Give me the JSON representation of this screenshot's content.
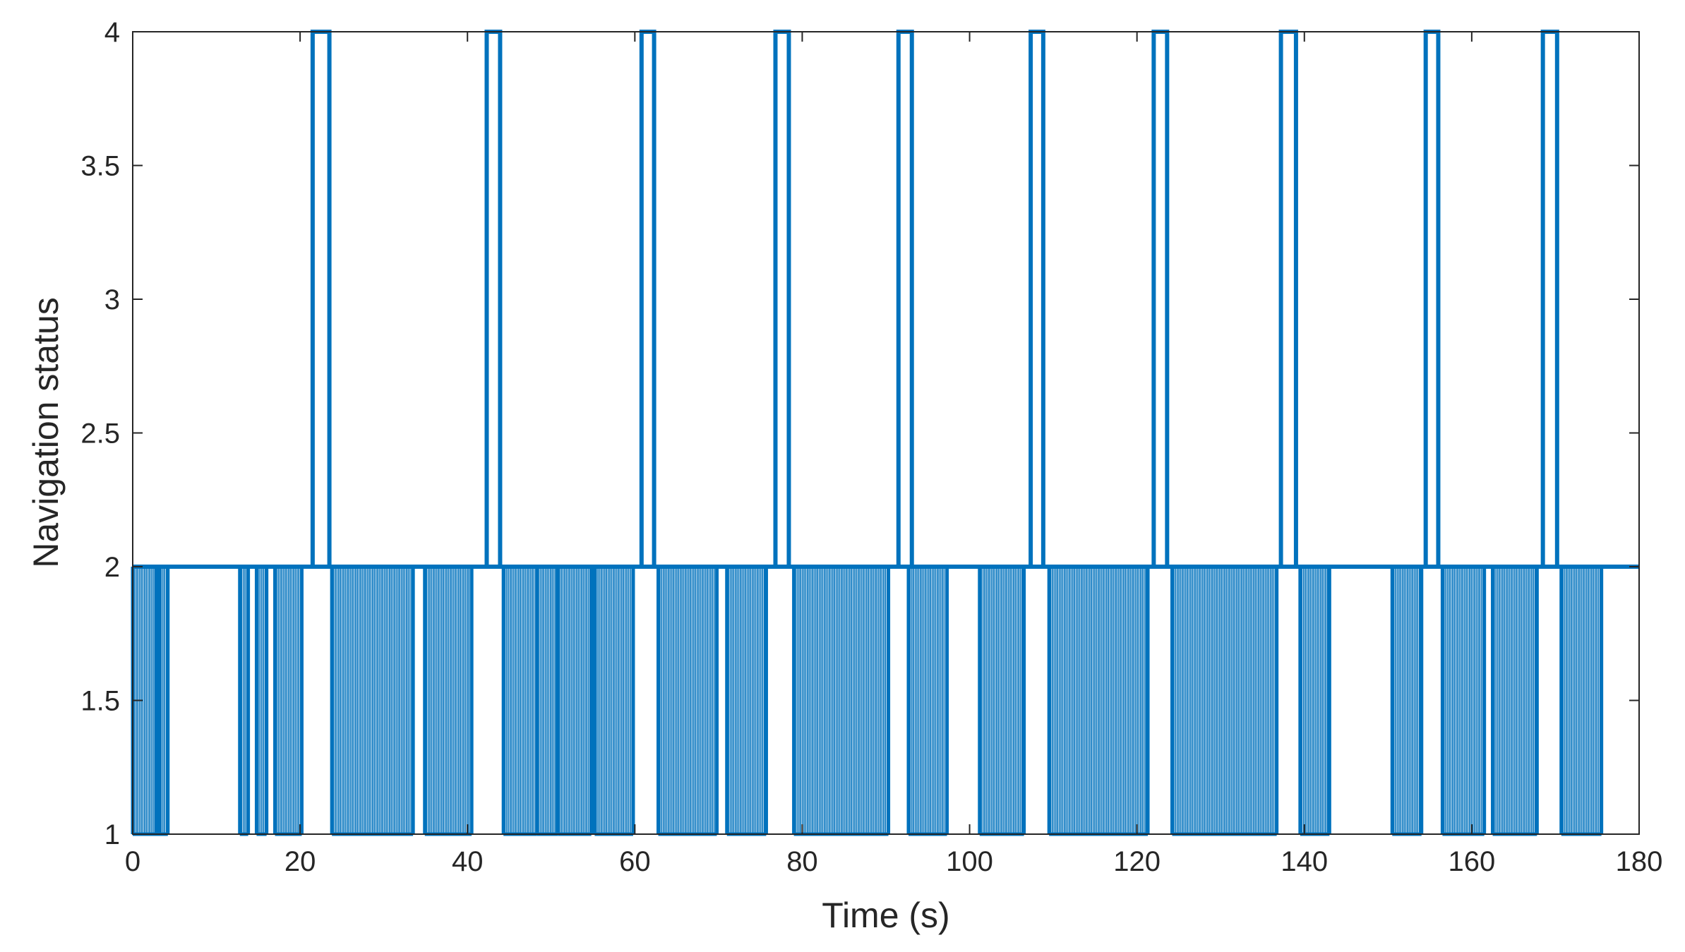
{
  "chart_data": {
    "type": "line",
    "xlabel": "Time (s)",
    "ylabel": "Navigation status",
    "xlim": [
      0,
      180
    ],
    "ylim": [
      1,
      4
    ],
    "xticks": [
      0,
      20,
      40,
      60,
      80,
      100,
      120,
      140,
      160,
      180
    ],
    "yticks": [
      1,
      1.5,
      2,
      2.5,
      3,
      3.5,
      4
    ],
    "xtick_labels": [
      "0",
      "20",
      "40",
      "60",
      "80",
      "100",
      "120",
      "140",
      "160",
      "180"
    ],
    "ytick_labels": [
      "1",
      "1.5",
      "2",
      "2.5",
      "3",
      "3.5",
      "4"
    ],
    "grid": false,
    "line_color": "#0072BD",
    "peaks_to_4": [
      [
        21.5,
        23.5
      ],
      [
        42.3,
        43.9
      ],
      [
        60.8,
        62.3
      ],
      [
        76.8,
        78.4
      ],
      [
        91.5,
        93.1
      ],
      [
        107.3,
        108.8
      ],
      [
        122.0,
        123.6
      ],
      [
        137.2,
        139.0
      ],
      [
        154.5,
        156.0
      ],
      [
        168.5,
        170.2
      ]
    ],
    "low_at_1": [
      [
        0,
        3.2
      ],
      [
        2.8,
        4.2
      ],
      [
        12.8,
        13.8
      ],
      [
        14.8,
        16.0
      ],
      [
        17.0,
        20.2
      ],
      [
        23.8,
        33.5
      ],
      [
        34.9,
        40.5
      ],
      [
        44.3,
        48.3
      ],
      [
        48.3,
        50.8
      ],
      [
        50.8,
        54.8
      ],
      [
        55.2,
        59.8
      ],
      [
        62.8,
        69.8
      ],
      [
        71.0,
        75.7
      ],
      [
        79.0,
        90.3
      ],
      [
        92.7,
        97.3
      ],
      [
        101.2,
        106.5
      ],
      [
        109.5,
        121.3
      ],
      [
        124.2,
        136.7
      ],
      [
        139.5,
        143.0
      ],
      [
        150.5,
        154.0
      ],
      [
        156.5,
        161.5
      ],
      [
        162.5,
        167.8
      ],
      [
        170.7,
        175.5
      ]
    ]
  }
}
